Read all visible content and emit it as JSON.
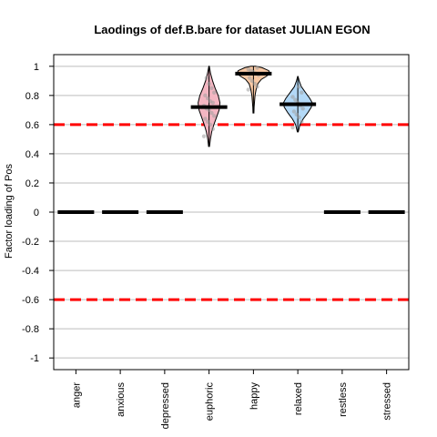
{
  "chart_data": {
    "type": "violin",
    "title": "Laodings of def.B.bare for dataset JULIAN EGON",
    "ylabel": "Factor loading of Pos",
    "xlabel": "",
    "ylim": [
      -1.08,
      1.08
    ],
    "yticks": [
      {
        "value": 1,
        "label": "1"
      },
      {
        "value": 0.8,
        "label": "0.8"
      },
      {
        "value": 0.6,
        "label": "0.6"
      },
      {
        "value": 0.4,
        "label": "0.4"
      },
      {
        "value": 0.2,
        "label": "0.2"
      },
      {
        "value": 0,
        "label": "0"
      },
      {
        "value": -0.2,
        "label": "-0.2"
      },
      {
        "value": -0.4,
        "label": "-0.4"
      },
      {
        "value": -0.6,
        "label": "-0.6"
      },
      {
        "value": -0.8,
        "label": "-0.8"
      },
      {
        "value": -1,
        "label": "-1"
      }
    ],
    "grid": true,
    "reference_lines": [
      {
        "value": 0.6,
        "color": "#ff0000",
        "style": "dashed"
      },
      {
        "value": -0.6,
        "color": "#ff0000",
        "style": "dashed"
      }
    ],
    "categories": [
      "anger",
      "anxious",
      "depressed",
      "euphoric",
      "happy",
      "relaxed",
      "restless",
      "stressed"
    ],
    "medians": [
      0,
      0,
      0,
      0.72,
      0.95,
      0.74,
      0,
      0
    ],
    "violins": [
      {
        "category": "euphoric",
        "color": "#f4b6c2",
        "min": 0.45,
        "max": 1.0,
        "profile": [
          [
            0.45,
            0.002
          ],
          [
            0.5,
            0.006
          ],
          [
            0.55,
            0.012
          ],
          [
            0.6,
            0.022
          ],
          [
            0.65,
            0.034
          ],
          [
            0.7,
            0.046
          ],
          [
            0.75,
            0.05
          ],
          [
            0.8,
            0.042
          ],
          [
            0.85,
            0.028
          ],
          [
            0.9,
            0.016
          ],
          [
            0.95,
            0.007
          ],
          [
            1.0,
            0.001
          ]
        ],
        "points": [
          0.52,
          0.57,
          0.6,
          0.62,
          0.64,
          0.66,
          0.68,
          0.7,
          0.71,
          0.73,
          0.75,
          0.76,
          0.78,
          0.8,
          0.82,
          0.85,
          0.88,
          0.92
        ]
      },
      {
        "category": "happy",
        "color": "#f9c9a5",
        "min": 0.68,
        "max": 1.0,
        "profile": [
          [
            0.68,
            0.002
          ],
          [
            0.72,
            0.003
          ],
          [
            0.76,
            0.005
          ],
          [
            0.8,
            0.007
          ],
          [
            0.84,
            0.012
          ],
          [
            0.88,
            0.02
          ],
          [
            0.91,
            0.036
          ],
          [
            0.93,
            0.058
          ],
          [
            0.95,
            0.075
          ],
          [
            0.97,
            0.07
          ],
          [
            0.99,
            0.04
          ],
          [
            1.0,
            0.012
          ]
        ],
        "points": [
          0.84,
          0.86,
          0.88,
          0.9,
          0.92,
          0.94,
          0.95,
          0.96,
          0.97,
          0.98,
          0.99
        ]
      },
      {
        "category": "relaxed",
        "color": "#b3d9f7",
        "min": 0.55,
        "max": 0.93,
        "profile": [
          [
            0.55,
            0.002
          ],
          [
            0.6,
            0.01
          ],
          [
            0.64,
            0.025
          ],
          [
            0.68,
            0.045
          ],
          [
            0.72,
            0.062
          ],
          [
            0.75,
            0.066
          ],
          [
            0.78,
            0.055
          ],
          [
            0.82,
            0.035
          ],
          [
            0.86,
            0.016
          ],
          [
            0.9,
            0.006
          ],
          [
            0.93,
            0.001
          ]
        ],
        "points": [
          0.58,
          0.62,
          0.65,
          0.67,
          0.69,
          0.71,
          0.73,
          0.75,
          0.77,
          0.79,
          0.82,
          0.86
        ]
      }
    ]
  }
}
